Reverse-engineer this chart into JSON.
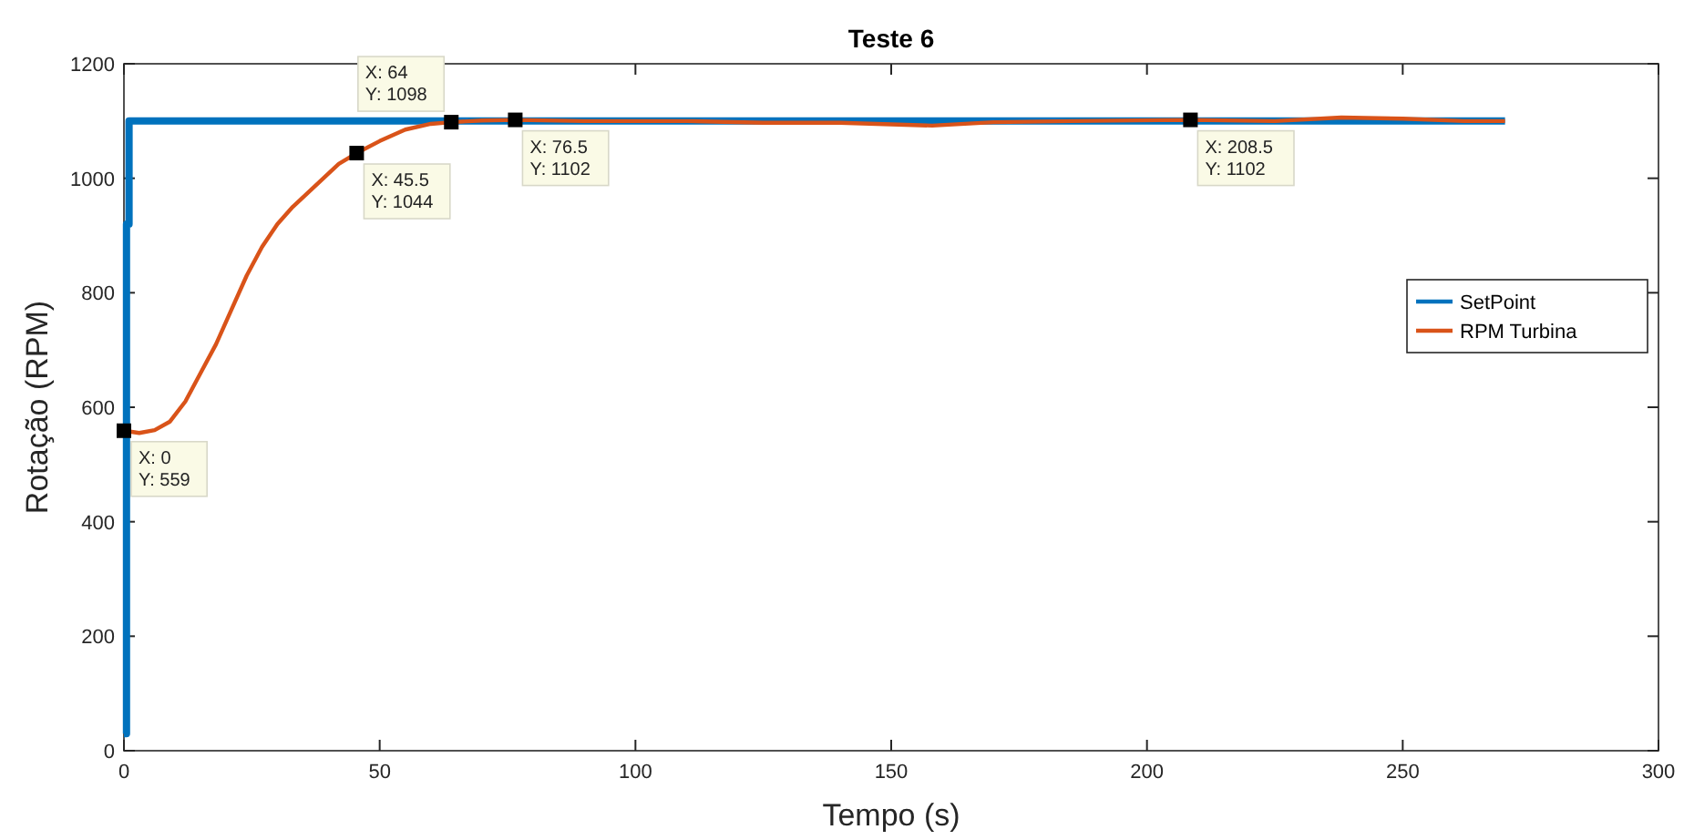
{
  "chart_data": {
    "type": "line",
    "title": "Teste 6",
    "xlabel": "Tempo (s)",
    "ylabel": "Rotação (RPM)",
    "xlim": [
      0,
      300
    ],
    "xticks": [
      0,
      50,
      100,
      150,
      200,
      250,
      300
    ],
    "ylim": [
      0,
      1200
    ],
    "yticks": [
      0,
      200,
      400,
      600,
      800,
      1000,
      1200
    ],
    "grid": false,
    "legend": "right",
    "line_style": "solid",
    "series": [
      {
        "name": "SetPoint",
        "color": "#0072bd",
        "x": [
          0,
          0.5,
          0.5,
          1,
          1,
          270
        ],
        "values": [
          30,
          30,
          920,
          920,
          1100,
          1100
        ]
      },
      {
        "name": "RPM Turbina",
        "color": "#d95319",
        "x": [
          0,
          3,
          6,
          9,
          12,
          15,
          18,
          21,
          24,
          27,
          30,
          33,
          36,
          39,
          42,
          45.5,
          50,
          55,
          60,
          64,
          70,
          76.5,
          90,
          110,
          125,
          140,
          158,
          170,
          185,
          208.5,
          225,
          238,
          250,
          262,
          270
        ],
        "values": [
          559,
          555,
          560,
          575,
          610,
          660,
          710,
          770,
          830,
          880,
          920,
          950,
          975,
          1000,
          1025,
          1044,
          1065,
          1085,
          1095,
          1098,
          1101,
          1102,
          1100,
          1100,
          1097,
          1097,
          1092,
          1098,
          1100,
          1102,
          1100,
          1106,
          1104,
          1100,
          1100
        ]
      }
    ],
    "annotations": [
      {
        "text": "X: 0\nY: 559",
        "x": 0,
        "y": 559
      },
      {
        "text": "X: 45.5\nY: 1044",
        "x": 45.5,
        "y": 1044
      },
      {
        "text": "X: 64\nY: 1098",
        "x": 64,
        "y": 1098
      },
      {
        "text": "X: 76.5\nY: 1102",
        "x": 76.5,
        "y": 1102
      },
      {
        "text": "X: 208.5\nY: 1102",
        "x": 208.5,
        "y": 1102
      }
    ]
  }
}
